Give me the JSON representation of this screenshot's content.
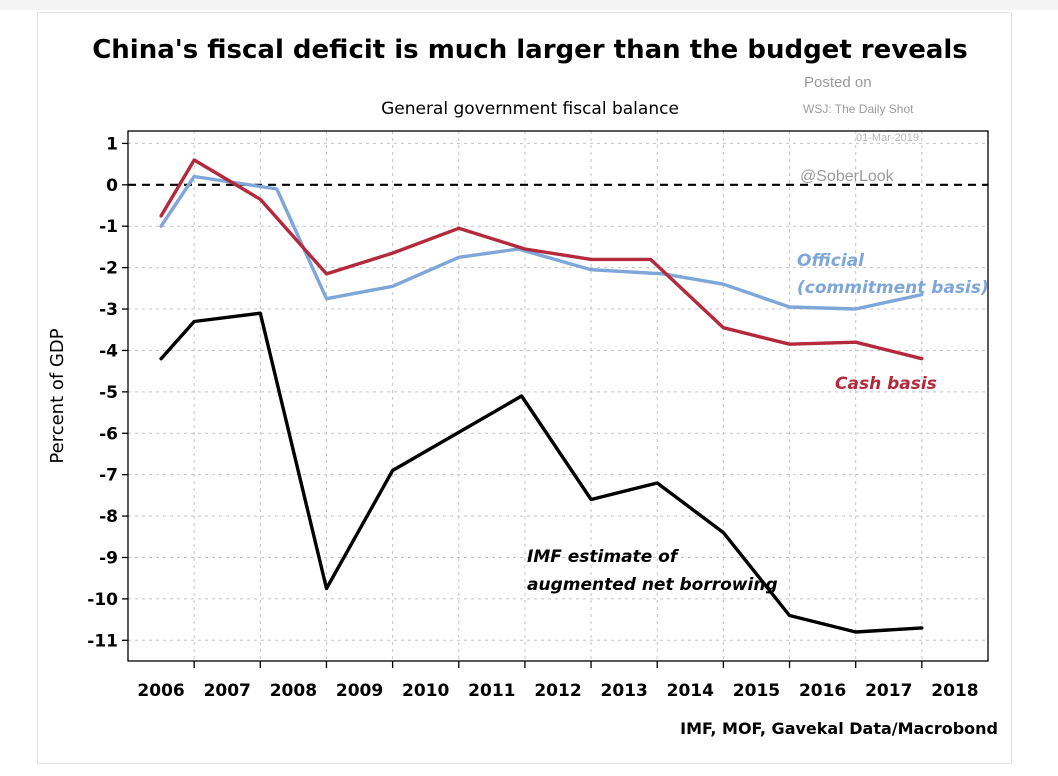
{
  "chart_data": {
    "type": "line",
    "title": "China's fiscal deficit is much larger than the budget reveals",
    "subtitle": "General government fiscal balance",
    "ylabel": "Percent of GDP",
    "xlabel": "",
    "source": "IMF, MOF, Gavekal Data/Macrobond",
    "ylim": [
      -11.5,
      1.3
    ],
    "yticks": [
      "1",
      "0",
      "-1",
      "-2",
      "-3",
      "-4",
      "-5",
      "-6",
      "-7",
      "-8",
      "-9",
      "-10",
      "-11"
    ],
    "categories": [
      "2006",
      "2007",
      "2008",
      "2009",
      "2010",
      "2011",
      "2012",
      "2013",
      "2014",
      "2015",
      "2016",
      "2017",
      "2018"
    ],
    "grid": true,
    "zero_line": "dashed",
    "series": [
      {
        "name": "Official (commitment basis)",
        "color": "#7ea6d8",
        "x": [
          2006.0,
          2006.5,
          2007.75,
          2008.5,
          2009.5,
          2010.5,
          2011.4,
          2012.5,
          2013.6,
          2014.5,
          2015.5,
          2016.5,
          2017.5
        ],
        "values": [
          -1.0,
          0.2,
          -0.1,
          -2.75,
          -2.45,
          -1.75,
          -1.55,
          -2.05,
          -2.15,
          -2.4,
          -2.95,
          -3.0,
          -2.65
        ]
      },
      {
        "name": "Cash basis",
        "color": "#b5293c",
        "x": [
          2006.0,
          2006.5,
          2007.5,
          2008.5,
          2009.5,
          2010.5,
          2011.5,
          2012.5,
          2013.4,
          2014.5,
          2015.5,
          2016.5,
          2017.5
        ],
        "values": [
          -0.75,
          0.6,
          -0.35,
          -2.15,
          -1.65,
          -1.05,
          -1.55,
          -1.8,
          -1.8,
          -3.45,
          -3.85,
          -3.8,
          -4.2
        ]
      },
      {
        "name": "IMF estimate of augmented net borrowing",
        "color": "#000000",
        "x": [
          2006.0,
          2006.5,
          2007.5,
          2008.5,
          2009.5,
          2011.45,
          2012.5,
          2013.5,
          2014.5,
          2015.5,
          2016.5,
          2017.5
        ],
        "values": [
          -4.2,
          -3.3,
          -3.1,
          -9.75,
          -6.9,
          -5.1,
          -7.6,
          -7.2,
          -8.4,
          -10.4,
          -10.8,
          -10.7
        ]
      }
    ],
    "annotations": [
      {
        "text": "Official",
        "color": "#7ea6d8"
      },
      {
        "text": "(commitment basis)",
        "color": "#7ea6d8"
      },
      {
        "text": "Cash basis",
        "color": "#b5293c"
      },
      {
        "text": "IMF estimate of",
        "color": "#000000"
      },
      {
        "text": "augmented net borrowing",
        "color": "#000000"
      }
    ]
  },
  "watermark": {
    "posted": "Posted on",
    "outlet": "WSJ: The Daily Shot",
    "date": "01-Mar-2019",
    "handle": "@SoberLook"
  }
}
